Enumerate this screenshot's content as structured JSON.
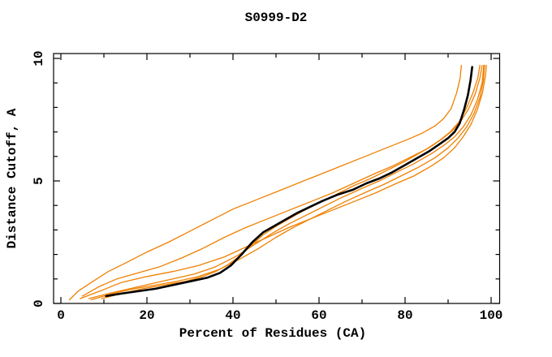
{
  "window": {
    "background": "#ffffff"
  },
  "chart_data": {
    "type": "line",
    "title": "S0999-D2",
    "xlabel": "Percent of Residues (CA)",
    "ylabel": "Distance Cutoff, A",
    "xlim": [
      0,
      100
    ],
    "ylim": [
      0,
      10
    ],
    "grid": false,
    "legend_position": "none",
    "frame": "box-with-inward-ticks",
    "x_major_ticks": [
      0,
      20,
      40,
      60,
      80,
      100
    ],
    "x_major_tick_labels": [
      "0",
      "20",
      "40",
      "60",
      "80",
      "100"
    ],
    "x_minor_ticks": [
      10,
      30,
      50,
      70,
      90
    ],
    "y_major_ticks": [
      0,
      5,
      10
    ],
    "y_major_tick_labels": [
      "0",
      "5",
      "10"
    ],
    "y_minor_ticks": [
      1,
      2,
      3,
      4,
      6,
      7,
      8,
      9
    ],
    "y_tick_label_rotation_deg": -90,
    "colors": {
      "frame": "#000000",
      "text": "#000000",
      "model_curve": "#f08000",
      "target_curve": "#000000"
    },
    "series": [
      {
        "name": "model-curve-1",
        "role": "model_curve",
        "stroke_width": 1.3,
        "points": [
          [
            2,
            0.15
          ],
          [
            4,
            0.5
          ],
          [
            7,
            0.85
          ],
          [
            11,
            1.3
          ],
          [
            15,
            1.65
          ],
          [
            20,
            2.1
          ],
          [
            25,
            2.5
          ],
          [
            30,
            2.95
          ],
          [
            35,
            3.4
          ],
          [
            40,
            3.85
          ],
          [
            45,
            4.2
          ],
          [
            50,
            4.55
          ],
          [
            55,
            4.9
          ],
          [
            60,
            5.25
          ],
          [
            65,
            5.6
          ],
          [
            70,
            5.95
          ],
          [
            75,
            6.3
          ],
          [
            80,
            6.65
          ],
          [
            84,
            6.95
          ],
          [
            87,
            7.25
          ],
          [
            89,
            7.55
          ],
          [
            90.7,
            7.95
          ],
          [
            92,
            8.6
          ],
          [
            92.8,
            9.2
          ],
          [
            93.1,
            9.72
          ]
        ]
      },
      {
        "name": "model-curve-2",
        "role": "model_curve",
        "stroke_width": 1.3,
        "points": [
          [
            5,
            0.3
          ],
          [
            9,
            0.7
          ],
          [
            13,
            1.0
          ],
          [
            18,
            1.25
          ],
          [
            23,
            1.5
          ],
          [
            28,
            1.85
          ],
          [
            33,
            2.25
          ],
          [
            38,
            2.7
          ],
          [
            43,
            3.1
          ],
          [
            48,
            3.45
          ],
          [
            53,
            3.8
          ],
          [
            58,
            4.15
          ],
          [
            63,
            4.5
          ],
          [
            68,
            4.9
          ],
          [
            73,
            5.3
          ],
          [
            77,
            5.6
          ],
          [
            81,
            5.95
          ],
          [
            85,
            6.3
          ],
          [
            88,
            6.65
          ],
          [
            90.5,
            7.0
          ],
          [
            92.5,
            7.4
          ],
          [
            94.2,
            7.95
          ],
          [
            95.8,
            8.6
          ],
          [
            96.9,
            9.2
          ],
          [
            97.4,
            9.72
          ]
        ]
      },
      {
        "name": "model-curve-3",
        "role": "model_curve",
        "stroke_width": 1.3,
        "points": [
          [
            9.5,
            0.2
          ],
          [
            14,
            0.4
          ],
          [
            19,
            0.6
          ],
          [
            24,
            0.75
          ],
          [
            29,
            0.9
          ],
          [
            33,
            1.1
          ],
          [
            36,
            1.3
          ],
          [
            39,
            1.6
          ],
          [
            42,
            2.0
          ],
          [
            44.5,
            2.4
          ],
          [
            47,
            2.8
          ],
          [
            50,
            3.15
          ],
          [
            53,
            3.45
          ],
          [
            56,
            3.75
          ],
          [
            60,
            4.1
          ],
          [
            64,
            4.45
          ],
          [
            68,
            4.8
          ],
          [
            72,
            5.1
          ],
          [
            76,
            5.45
          ],
          [
            80,
            5.8
          ],
          [
            83,
            6.1
          ],
          [
            86,
            6.4
          ],
          [
            88.5,
            6.7
          ],
          [
            91,
            7.05
          ],
          [
            93,
            7.45
          ],
          [
            94.8,
            7.95
          ],
          [
            96.3,
            8.55
          ],
          [
            97.4,
            9.2
          ],
          [
            97.9,
            9.72
          ]
        ]
      },
      {
        "name": "model-curve-4",
        "role": "model_curve",
        "stroke_width": 1.3,
        "points": [
          [
            6.5,
            0.2
          ],
          [
            11,
            0.4
          ],
          [
            16,
            0.6
          ],
          [
            21,
            0.8
          ],
          [
            26,
            1.0
          ],
          [
            31,
            1.2
          ],
          [
            36,
            1.5
          ],
          [
            41,
            1.95
          ],
          [
            45,
            2.4
          ],
          [
            49,
            2.85
          ],
          [
            53,
            3.25
          ],
          [
            57,
            3.6
          ],
          [
            61,
            3.95
          ],
          [
            65,
            4.3
          ],
          [
            70,
            4.7
          ],
          [
            74,
            5.0
          ],
          [
            78,
            5.35
          ],
          [
            82,
            5.7
          ],
          [
            86,
            6.1
          ],
          [
            89,
            6.45
          ],
          [
            91.5,
            6.8
          ],
          [
            93.5,
            7.2
          ],
          [
            95.3,
            7.7
          ],
          [
            96.8,
            8.3
          ],
          [
            97.9,
            9.0
          ],
          [
            98.3,
            9.72
          ]
        ]
      },
      {
        "name": "model-curve-5",
        "role": "model_curve",
        "stroke_width": 1.3,
        "points": [
          [
            7,
            0.15
          ],
          [
            12,
            0.4
          ],
          [
            17,
            0.6
          ],
          [
            22,
            0.75
          ],
          [
            27,
            0.9
          ],
          [
            32,
            1.1
          ],
          [
            37,
            1.4
          ],
          [
            42,
            1.85
          ],
          [
            46,
            2.25
          ],
          [
            50,
            2.7
          ],
          [
            54,
            3.1
          ],
          [
            58,
            3.45
          ],
          [
            62,
            3.8
          ],
          [
            66,
            4.15
          ],
          [
            71,
            4.55
          ],
          [
            75,
            4.85
          ],
          [
            79,
            5.2
          ],
          [
            83,
            5.55
          ],
          [
            87,
            5.95
          ],
          [
            90,
            6.35
          ],
          [
            92.3,
            6.75
          ],
          [
            94.3,
            7.2
          ],
          [
            96,
            7.75
          ],
          [
            97.4,
            8.4
          ],
          [
            98.2,
            9.1
          ],
          [
            98.5,
            9.72
          ]
        ]
      },
      {
        "name": "model-curve-6",
        "role": "model_curve",
        "stroke_width": 1.3,
        "points": [
          [
            4.5,
            0.2
          ],
          [
            9,
            0.5
          ],
          [
            14,
            0.85
          ],
          [
            20,
            1.1
          ],
          [
            26,
            1.3
          ],
          [
            32,
            1.55
          ],
          [
            38,
            1.9
          ],
          [
            43,
            2.3
          ],
          [
            48,
            2.7
          ],
          [
            53,
            3.1
          ],
          [
            58,
            3.45
          ],
          [
            63,
            3.8
          ],
          [
            68,
            4.15
          ],
          [
            73,
            4.5
          ],
          [
            78,
            4.9
          ],
          [
            82,
            5.2
          ],
          [
            86,
            5.6
          ],
          [
            89,
            5.95
          ],
          [
            91.5,
            6.35
          ],
          [
            93.5,
            6.8
          ],
          [
            95.3,
            7.3
          ],
          [
            96.8,
            7.9
          ],
          [
            98,
            8.6
          ],
          [
            98.7,
            9.3
          ],
          [
            98.9,
            9.72
          ]
        ]
      },
      {
        "name": "target-main-curve",
        "role": "target_curve",
        "stroke_width": 2.6,
        "points": [
          [
            10.5,
            0.3
          ],
          [
            14,
            0.4
          ],
          [
            18,
            0.5
          ],
          [
            22,
            0.6
          ],
          [
            26,
            0.75
          ],
          [
            30,
            0.9
          ],
          [
            34,
            1.05
          ],
          [
            37,
            1.25
          ],
          [
            39.5,
            1.55
          ],
          [
            42,
            2.0
          ],
          [
            44.5,
            2.5
          ],
          [
            47,
            2.9
          ],
          [
            49.5,
            3.15
          ],
          [
            52,
            3.4
          ],
          [
            55,
            3.7
          ],
          [
            58,
            3.95
          ],
          [
            61,
            4.2
          ],
          [
            64.5,
            4.45
          ],
          [
            68,
            4.65
          ],
          [
            71,
            4.9
          ],
          [
            74,
            5.1
          ],
          [
            77,
            5.35
          ],
          [
            80,
            5.65
          ],
          [
            83,
            5.95
          ],
          [
            85.5,
            6.2
          ],
          [
            88,
            6.5
          ],
          [
            90,
            6.75
          ],
          [
            91.5,
            7.0
          ],
          [
            92.7,
            7.35
          ],
          [
            93.7,
            7.9
          ],
          [
            94.6,
            8.5
          ],
          [
            95.2,
            9.1
          ],
          [
            95.6,
            9.65
          ]
        ]
      }
    ]
  }
}
